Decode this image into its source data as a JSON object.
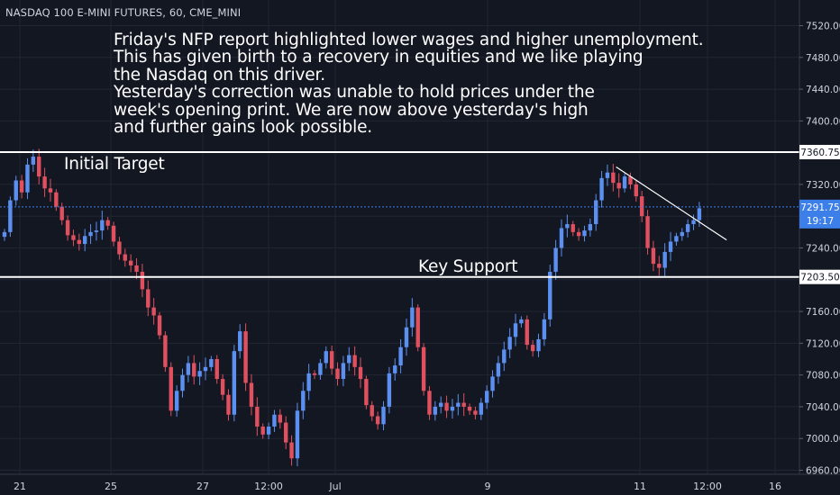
{
  "header": {
    "symbol_title": "NASDAQ 100 E-MINI FUTURES, 60, CME_MINI"
  },
  "commentary": {
    "lines": [
      "Friday's NFP report highlighted lower wages and higher unemployment.",
      "This has given birth to a recovery in equities and we like playing",
      "the Nasdaq on this driver.",
      "Yesterday's correction was unable to hold prices under the",
      "week's opening print. We are now above yesterday's high",
      "and further gains look possible."
    ]
  },
  "levels": {
    "initial_target": {
      "label": "Initial Target",
      "price": 7360.75,
      "price_label": "7360.75"
    },
    "key_support": {
      "label": "Key Support",
      "price": 7203.5,
      "price_label": "7203.50"
    }
  },
  "last_price": {
    "price": 7291.75,
    "price_label": "7291.75",
    "countdown": "19:17"
  },
  "colors": {
    "background": "#131722",
    "up": "#5b8ff0",
    "down": "#e0505f",
    "grid": "#222633",
    "level_line": "#ffffff",
    "last_price": "#3d7fe8",
    "text": "#d1d4dc"
  },
  "chart_data": {
    "type": "candlestick",
    "title": "NASDAQ 100 E-MINI FUTURES, 60, CME_MINI",
    "y_ticks": [
      7520,
      7480,
      7440,
      7400,
      7360,
      7320,
      7280,
      7240,
      7200,
      7160,
      7120,
      7080,
      7040,
      7000,
      6960
    ],
    "y_tick_labels": [
      "7520.00",
      "7480.00",
      "7440.00",
      "7400.00",
      "7360.00",
      "7320.00",
      "7280.00",
      "7240.00",
      "7200.00",
      "7160.00",
      "7120.00",
      "7080.00",
      "7040.00",
      "7000.00",
      "6960.00"
    ],
    "x_tick_labels": [
      "21",
      "25",
      "27",
      "12:00",
      "Jul",
      "9",
      "11",
      "12:00",
      "16"
    ],
    "ylim": [
      6950,
      7540
    ],
    "grid": true,
    "trendline": {
      "from": [
        0.7335,
        7342
      ],
      "to": [
        0.865,
        7250
      ]
    },
    "series": [
      {
        "name": "",
        "description": "approximate hourly closes read off the candles",
        "x_end": 0.8325,
        "closes": [
          7260,
          7300,
          7325,
          7310,
          7345,
          7355,
          7330,
          7315,
          7310,
          7292,
          7275,
          7256,
          7250,
          7245,
          7255,
          7260,
          7262,
          7275,
          7268,
          7248,
          7232,
          7224,
          7218,
          7210,
          7188,
          7165,
          7155,
          7130,
          7090,
          7035,
          7060,
          7080,
          7095,
          7078,
          7085,
          7090,
          7100,
          7075,
          7055,
          7030,
          7110,
          7135,
          7070,
          7040,
          7015,
          7005,
          7015,
          7030,
          7020,
          6995,
          6975,
          7035,
          7060,
          7082,
          7080,
          7095,
          7110,
          7088,
          7075,
          7095,
          7105,
          7090,
          7075,
          7042,
          7028,
          7018,
          7040,
          7082,
          7092,
          7115,
          7140,
          7165,
          7115,
          7060,
          7030,
          7040,
          7045,
          7035,
          7040,
          7045,
          7040,
          7035,
          7030,
          7045,
          7060,
          7078,
          7095,
          7112,
          7128,
          7145,
          7150,
          7118,
          7110,
          7125,
          7150,
          7210,
          7240,
          7265,
          7270,
          7260,
          7255,
          7262,
          7270,
          7300,
          7328,
          7335,
          7322,
          7315,
          7330,
          7320,
          7305,
          7280,
          7240,
          7220,
          7215,
          7235,
          7248,
          7255,
          7260,
          7270,
          7275,
          7290
        ]
      }
    ]
  }
}
